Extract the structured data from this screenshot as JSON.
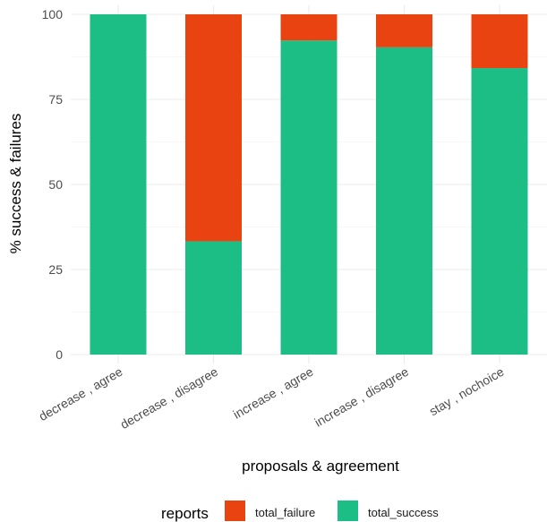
{
  "chart_data": {
    "type": "bar",
    "stacked": true,
    "title": "",
    "xlabel": "proposals & agreement",
    "ylabel": "% success & failures",
    "ylim": [
      0,
      100
    ],
    "yticks": [
      0,
      25,
      50,
      75,
      100
    ],
    "ytick_labels": [
      "0",
      "25",
      "50",
      "75",
      "100"
    ],
    "grid": true,
    "legend_position": "bottom",
    "categories": [
      "decrease , agree",
      "decrease , disagree",
      "increase , agree",
      "increase , disagree",
      "stay , nochoice"
    ],
    "series": [
      {
        "name": "total_success",
        "color": "#1dbe85",
        "values": [
          100,
          33.3,
          92.3,
          90.3,
          84.2
        ]
      },
      {
        "name": "total_failure",
        "color": "#ea4312",
        "values": [
          0,
          66.7,
          7.7,
          9.7,
          15.8
        ]
      }
    ],
    "legend": {
      "title": "reports",
      "entries": [
        {
          "label": "total_failure",
          "color": "#ea4312"
        },
        {
          "label": "total_success",
          "color": "#1dbe85"
        }
      ]
    }
  }
}
